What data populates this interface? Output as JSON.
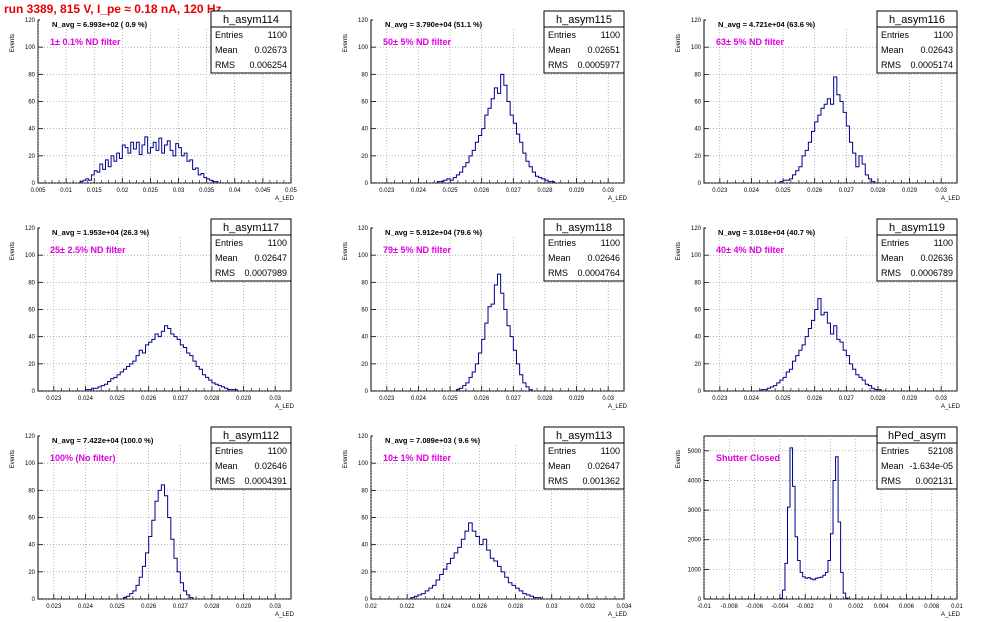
{
  "title": "run 3389,   815 V, I_pe ≈ 0.18 nA, 120 Hz",
  "stats_labels": {
    "entries": "Entries",
    "mean": "Mean",
    "rms": "RMS"
  },
  "y_axis_label": "Events",
  "x_axis_label": "A_LED",
  "colors": {
    "histogram": "#00008b",
    "annotation": "#e000e0",
    "title": "#e60000",
    "grid": "#888888"
  },
  "chart_data": [
    {
      "type": "histogram",
      "name": "h_asym114",
      "navg": "N_avg = 6.993e+02 ( 0.9 %)",
      "filter": "1± 0.1% ND filter",
      "entries": "1100",
      "mean": "0.02673",
      "rms": "0.006254",
      "xlim": [
        0.005,
        0.05
      ],
      "ylim": [
        0,
        120
      ],
      "xticks": [
        0.005,
        0.01,
        0.015,
        0.02,
        0.025,
        0.03,
        0.035,
        0.04,
        0.045,
        0.05
      ],
      "xtick_labels": [
        "0.005",
        "0.01",
        "0.015",
        "0.02",
        "0.025",
        "0.03",
        "0.035",
        "0.04",
        "0.045",
        "0.05"
      ],
      "yticks": [
        0,
        20,
        40,
        60,
        80,
        100,
        120
      ],
      "ytick_labels": [
        "0",
        "20",
        "40",
        "60",
        "80",
        "100",
        "120"
      ],
      "bin_lo": 0.0125,
      "bin_w": 0.0005,
      "counts": [
        1,
        2,
        3,
        2,
        6,
        9,
        8,
        14,
        10,
        17,
        12,
        20,
        16,
        22,
        18,
        28,
        26,
        22,
        30,
        25,
        30,
        21,
        28,
        34,
        22,
        26,
        30,
        24,
        33,
        22,
        28,
        31,
        24,
        20,
        29,
        26,
        20,
        22,
        16,
        17,
        10,
        11,
        6,
        7,
        4,
        3,
        2,
        1,
        1
      ]
    },
    {
      "type": "histogram",
      "name": "h_asym115",
      "navg": "N_avg = 3.790e+04 (51.1 %)",
      "filter": "50± 5% ND filter",
      "entries": "1100",
      "mean": "0.02651",
      "rms": "0.0005977",
      "xlim": [
        0.0225,
        0.0305
      ],
      "ylim": [
        0,
        120
      ],
      "xticks": [
        0.023,
        0.024,
        0.025,
        0.026,
        0.027,
        0.028,
        0.029,
        0.03
      ],
      "xtick_labels": [
        "0.023",
        "0.024",
        "0.025",
        "0.026",
        "0.027",
        "0.028",
        "0.029",
        "0.03"
      ],
      "yticks": [
        0,
        20,
        40,
        60,
        80,
        100,
        120
      ],
      "ytick_labels": [
        "0",
        "20",
        "40",
        "60",
        "80",
        "100",
        "120"
      ],
      "bin_lo": 0.0246,
      "bin_w": 0.0001,
      "counts": [
        1,
        1,
        2,
        3,
        2,
        4,
        6,
        8,
        12,
        15,
        20,
        24,
        30,
        35,
        40,
        50,
        55,
        62,
        70,
        66,
        80,
        72,
        60,
        50,
        44,
        36,
        30,
        22,
        16,
        12,
        8,
        5,
        4,
        3,
        2,
        1,
        1
      ]
    },
    {
      "type": "histogram",
      "name": "h_asym116",
      "navg": "N_avg = 4.721e+04 (63.6 %)",
      "filter": "63± 5% ND filter",
      "entries": "1100",
      "mean": "0.02643",
      "rms": "0.0005174",
      "xlim": [
        0.0225,
        0.0305
      ],
      "ylim": [
        0,
        120
      ],
      "xticks": [
        0.023,
        0.024,
        0.025,
        0.026,
        0.027,
        0.028,
        0.029,
        0.03
      ],
      "xtick_labels": [
        "0.023",
        "0.024",
        "0.025",
        "0.026",
        "0.027",
        "0.028",
        "0.029",
        "0.03"
      ],
      "yticks": [
        0,
        20,
        40,
        60,
        80,
        100,
        120
      ],
      "ytick_labels": [
        "0",
        "20",
        "40",
        "60",
        "80",
        "100",
        "120"
      ],
      "bin_lo": 0.0249,
      "bin_w": 0.0001,
      "counts": [
        1,
        2,
        2,
        3,
        6,
        9,
        12,
        20,
        24,
        30,
        38,
        45,
        50,
        55,
        58,
        62,
        58,
        78,
        65,
        60,
        52,
        42,
        30,
        22,
        12,
        20,
        14,
        6,
        3,
        1
      ]
    },
    {
      "type": "histogram",
      "name": "h_asym117",
      "navg": "N_avg = 1.953e+04 (26.3 %)",
      "filter": "25± 2.5% ND filter",
      "entries": "1100",
      "mean": "0.02647",
      "rms": "0.0007989",
      "xlim": [
        0.0225,
        0.0305
      ],
      "ylim": [
        0,
        120
      ],
      "xticks": [
        0.023,
        0.024,
        0.025,
        0.026,
        0.027,
        0.028,
        0.029,
        0.03
      ],
      "xtick_labels": [
        "0.023",
        "0.024",
        "0.025",
        "0.026",
        "0.027",
        "0.028",
        "0.029",
        "0.03"
      ],
      "yticks": [
        0,
        20,
        40,
        60,
        80,
        100,
        120
      ],
      "ytick_labels": [
        "0",
        "20",
        "40",
        "60",
        "80",
        "100",
        "120"
      ],
      "bin_lo": 0.024,
      "bin_w": 0.0001,
      "counts": [
        1,
        1,
        2,
        2,
        3,
        4,
        5,
        7,
        9,
        10,
        12,
        14,
        16,
        18,
        20,
        22,
        26,
        30,
        28,
        34,
        36,
        38,
        42,
        40,
        44,
        48,
        46,
        42,
        40,
        38,
        34,
        32,
        28,
        26,
        22,
        18,
        16,
        12,
        10,
        8,
        6,
        5,
        4,
        3,
        2,
        1,
        1,
        1
      ]
    },
    {
      "type": "histogram",
      "name": "h_asym118",
      "navg": "N_avg = 5.912e+04 (79.6 %)",
      "filter": "79± 5% ND filter",
      "entries": "1100",
      "mean": "0.02646",
      "rms": "0.0004764",
      "xlim": [
        0.0225,
        0.0305
      ],
      "ylim": [
        0,
        120
      ],
      "xticks": [
        0.023,
        0.024,
        0.025,
        0.026,
        0.027,
        0.028,
        0.029,
        0.03
      ],
      "xtick_labels": [
        "0.023",
        "0.024",
        "0.025",
        "0.026",
        "0.027",
        "0.028",
        "0.029",
        "0.03"
      ],
      "yticks": [
        0,
        20,
        40,
        60,
        80,
        100,
        120
      ],
      "ytick_labels": [
        "0",
        "20",
        "40",
        "60",
        "80",
        "100",
        "120"
      ],
      "bin_lo": 0.0252,
      "bin_w": 0.0001,
      "counts": [
        1,
        2,
        4,
        6,
        10,
        14,
        20,
        28,
        38,
        50,
        62,
        64,
        78,
        86,
        72,
        60,
        48,
        40,
        30,
        20,
        12,
        6,
        3,
        1
      ]
    },
    {
      "type": "histogram",
      "name": "h_asym119",
      "navg": "N_avg = 3.018e+04 (40.7 %)",
      "filter": "40± 4% ND filter",
      "entries": "1100",
      "mean": "0.02636",
      "rms": "0.0006789",
      "xlim": [
        0.0225,
        0.0305
      ],
      "ylim": [
        0,
        120
      ],
      "xticks": [
        0.023,
        0.024,
        0.025,
        0.026,
        0.027,
        0.028,
        0.029,
        0.03
      ],
      "xtick_labels": [
        "0.023",
        "0.024",
        "0.025",
        "0.026",
        "0.027",
        "0.028",
        "0.029",
        "0.03"
      ],
      "yticks": [
        0,
        20,
        40,
        60,
        80,
        100,
        120
      ],
      "ytick_labels": [
        "0",
        "20",
        "40",
        "60",
        "80",
        "100",
        "120"
      ],
      "bin_lo": 0.0243,
      "bin_w": 0.0001,
      "counts": [
        1,
        1,
        2,
        3,
        4,
        6,
        8,
        10,
        14,
        16,
        22,
        26,
        30,
        34,
        40,
        46,
        52,
        60,
        68,
        56,
        58,
        50,
        42,
        48,
        38,
        36,
        30,
        26,
        20,
        16,
        12,
        10,
        8,
        5,
        4,
        2,
        1,
        1
      ]
    },
    {
      "type": "histogram",
      "name": "h_asym112",
      "navg": "N_avg = 7.422e+04 (100.0 %)",
      "filter": "100% (No filter)",
      "entries": "1100",
      "mean": "0.02646",
      "rms": "0.0004391",
      "xlim": [
        0.0225,
        0.0305
      ],
      "ylim": [
        0,
        120
      ],
      "xticks": [
        0.023,
        0.024,
        0.025,
        0.026,
        0.027,
        0.028,
        0.029,
        0.03
      ],
      "xtick_labels": [
        "0.023",
        "0.024",
        "0.025",
        "0.026",
        "0.027",
        "0.028",
        "0.029",
        "0.03"
      ],
      "yticks": [
        0,
        20,
        40,
        60,
        80,
        100,
        120
      ],
      "ytick_labels": [
        "0",
        "20",
        "40",
        "60",
        "80",
        "100",
        "120"
      ],
      "bin_lo": 0.0252,
      "bin_w": 0.0001,
      "counts": [
        1,
        2,
        4,
        6,
        10,
        16,
        24,
        34,
        46,
        58,
        72,
        80,
        84,
        76,
        60,
        44,
        30,
        20,
        12,
        6,
        3,
        1
      ]
    },
    {
      "type": "histogram",
      "name": "h_asym113",
      "navg": "N_avg = 7.089e+03 ( 9.6 %)",
      "filter": "10± 1% ND filter",
      "entries": "1100",
      "mean": "0.02647",
      "rms": "0.001362",
      "xlim": [
        0.02,
        0.034
      ],
      "ylim": [
        0,
        120
      ],
      "xticks": [
        0.02,
        0.022,
        0.024,
        0.026,
        0.028,
        0.03,
        0.032,
        0.034
      ],
      "xtick_labels": [
        "0.02",
        "0.022",
        "0.024",
        "0.026",
        "0.028",
        "0.03",
        "0.032",
        "0.034"
      ],
      "yticks": [
        0,
        20,
        40,
        60,
        80,
        100,
        120
      ],
      "ytick_labels": [
        "0",
        "20",
        "40",
        "60",
        "80",
        "100",
        "120"
      ],
      "bin_lo": 0.0222,
      "bin_w": 0.0002,
      "counts": [
        1,
        2,
        3,
        4,
        6,
        8,
        10,
        14,
        18,
        22,
        26,
        30,
        34,
        38,
        44,
        50,
        56,
        50,
        46,
        40,
        44,
        36,
        30,
        28,
        24,
        20,
        16,
        12,
        10,
        8,
        6,
        4,
        3,
        2,
        1,
        1
      ]
    },
    {
      "type": "histogram",
      "name": "hPed_asym",
      "navg": "",
      "filter": "Shutter Closed",
      "entries": "52108",
      "mean": "-1.634e-05",
      "rms": "0.002131",
      "xlim": [
        -0.01,
        0.01
      ],
      "ylim": [
        0,
        5500
      ],
      "xticks": [
        -0.01,
        -0.008,
        -0.006,
        -0.004,
        -0.002,
        0,
        0.002,
        0.004,
        0.006,
        0.008,
        0.01
      ],
      "xtick_labels": [
        "-0.01",
        "-0.008",
        "-0.006",
        "-0.004",
        "-0.002",
        "0",
        "0.002",
        "0.004",
        "0.006",
        "0.008",
        "0.01"
      ],
      "yticks": [
        0,
        1000,
        2000,
        3000,
        4000,
        5000
      ],
      "ytick_labels": [
        "0",
        "1000",
        "2000",
        "3000",
        "4000",
        "5000"
      ],
      "bin_lo": -0.004,
      "bin_w": 0.0002,
      "counts": [
        20,
        300,
        1200,
        3100,
        5100,
        3800,
        2100,
        1300,
        900,
        750,
        700,
        720,
        680,
        650,
        700,
        720,
        740,
        800,
        900,
        1300,
        2200,
        4000,
        4800,
        2600,
        900,
        200,
        30
      ]
    }
  ]
}
